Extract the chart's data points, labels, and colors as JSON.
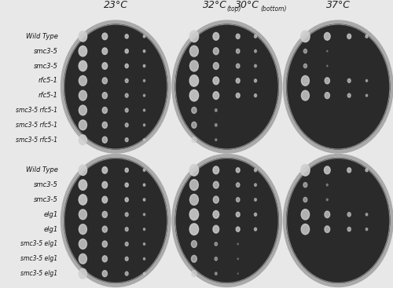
{
  "title_col1": "23°C",
  "title_col2a": "32°C",
  "title_col2b": "(top)",
  "title_col2c": "30°C",
  "title_col2d": "(bottom)",
  "title_col3": "37°C",
  "top_row_labels": [
    "Wild Type",
    "smc3-5",
    "smc3-5",
    "rfc5-1",
    "rfc5-1",
    "smc3-5 rfc5-1",
    "smc3-5 rfc5-1",
    "smc3-5 rfc5-1"
  ],
  "bottom_row_labels": [
    "Wild Type",
    "smc3-5",
    "smc3-5",
    "elg1",
    "elg1",
    "smc3-5 elg1",
    "smc3-5 elg1",
    "smc3-5 elg1"
  ],
  "plate_bg": "#2a2a2a",
  "plate_edge_color": "#888888",
  "plate_rim_color": "#aaaaaa",
  "spot_color": "#d0d0d0",
  "fig_bg": "#e8e8e8",
  "label_color": "#111111",
  "title_fontsize": 9,
  "label_fontsize": 6.0,
  "label_fontsize_compound": 5.5
}
